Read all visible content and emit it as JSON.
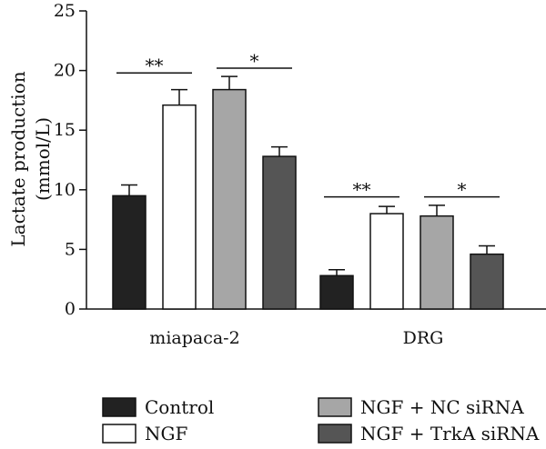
{
  "chart_data": {
    "type": "bar",
    "ylabel_line1": "Lactate production",
    "ylabel_line2": "(mmol/L)",
    "xlabel": "",
    "ylim": [
      0,
      25
    ],
    "yticks": [
      "0",
      "5",
      "10",
      "15",
      "20",
      "25"
    ],
    "categories": [
      "miapaca-2",
      "DRG"
    ],
    "series": [
      {
        "name": "Control",
        "values": [
          9.5,
          2.8
        ],
        "errors": [
          0.9,
          0.5
        ],
        "color": "#222222"
      },
      {
        "name": "NGF",
        "values": [
          17.1,
          8.0
        ],
        "errors": [
          1.3,
          0.6
        ],
        "color": "#ffffff"
      },
      {
        "name": "NGF + NC siRNA",
        "values": [
          18.4,
          7.8
        ],
        "errors": [
          1.1,
          0.9
        ],
        "color": "#a6a6a6"
      },
      {
        "name": "NGF + TrkA siRNA",
        "values": [
          12.8,
          4.6
        ],
        "errors": [
          0.8,
          0.7
        ],
        "color": "#555555"
      }
    ],
    "annotations": [
      {
        "group": 0,
        "from": 0,
        "to": 1,
        "label": "**",
        "y": 19.8
      },
      {
        "group": 0,
        "from": 2,
        "to": 3,
        "label": "*",
        "y": 20.2
      },
      {
        "group": 1,
        "from": 0,
        "to": 1,
        "label": "**",
        "y": 9.4
      },
      {
        "group": 1,
        "from": 2,
        "to": 3,
        "label": "*",
        "y": 9.4
      }
    ],
    "grid": false,
    "legend_position": "bottom"
  }
}
